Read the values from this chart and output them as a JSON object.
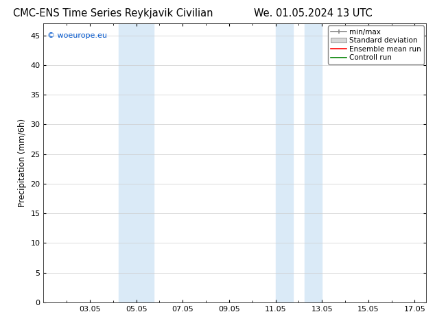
{
  "title_left": "CMC-ENS Time Series Reykjavik Civilian",
  "title_right": "We. 01.05.2024 13 UTC",
  "ylabel": "Precipitation (mm/6h)",
  "ylim": [
    0,
    47
  ],
  "yticks": [
    0,
    5,
    10,
    15,
    20,
    25,
    30,
    35,
    40,
    45
  ],
  "xlim": [
    1.0,
    17.5
  ],
  "xtick_labels": [
    "03.05",
    "05.05",
    "07.05",
    "09.05",
    "11.05",
    "13.05",
    "15.05",
    "17.05"
  ],
  "xtick_positions": [
    3,
    5,
    7,
    9,
    11,
    13,
    15,
    17
  ],
  "shaded_regions": [
    {
      "x_start": 4.25,
      "x_end": 5.75,
      "color": "#daeaf7"
    },
    {
      "x_start": 11.0,
      "x_end": 11.75,
      "color": "#daeaf7"
    },
    {
      "x_start": 12.25,
      "x_end": 13.0,
      "color": "#daeaf7"
    }
  ],
  "legend_entries": [
    {
      "label": "min/max",
      "color": "#aaaaaa",
      "type": "line_with_caps"
    },
    {
      "label": "Standard deviation",
      "color": "#cccccc",
      "type": "bar"
    },
    {
      "label": "Ensemble mean run",
      "color": "#ff0000",
      "type": "line"
    },
    {
      "label": "Controll run",
      "color": "#008000",
      "type": "line"
    }
  ],
  "watermark_text": "© woeurope.eu",
  "watermark_color": "#0055cc",
  "background_color": "#ffffff",
  "plot_bg_color": "#ffffff",
  "grid_color": "#cccccc",
  "spine_color": "#444444",
  "title_fontsize": 10.5,
  "axis_label_fontsize": 8.5,
  "tick_fontsize": 8,
  "legend_fontsize": 7.5
}
